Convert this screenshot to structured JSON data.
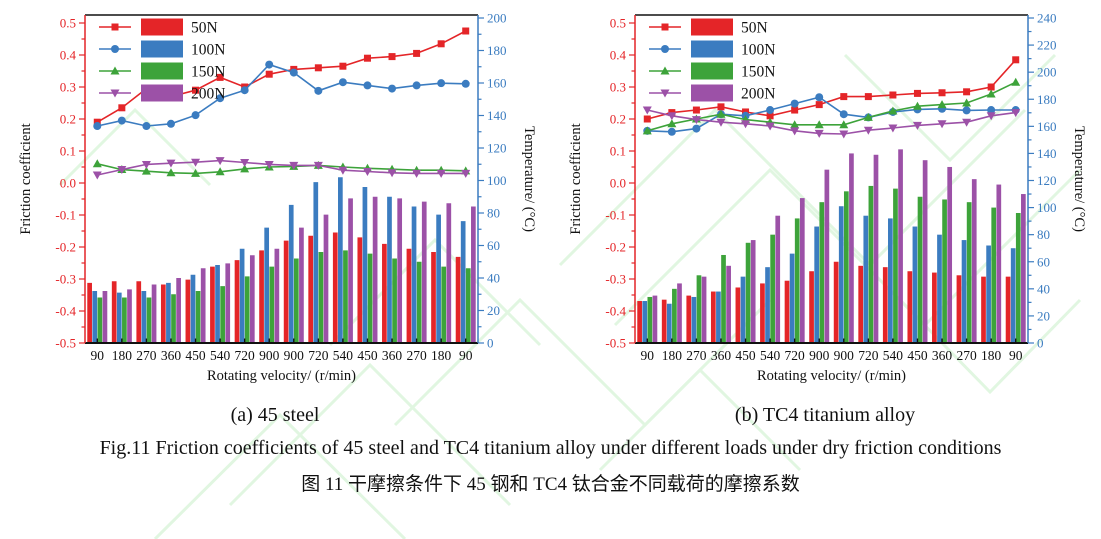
{
  "captions": {
    "a": "(a) 45 steel",
    "b": "(b) TC4 titanium alloy",
    "fig_en": "Fig.11 Friction coefficients of 45 steel and TC4 titanium alloy under different loads under dry friction conditions",
    "fig_zh": "图 11  干摩擦条件下 45 钢和 TC4 钛合金不同载荷的摩擦系数"
  },
  "colors": {
    "load50": "#e42528",
    "load100": "#3b7cc0",
    "load150": "#3da33a",
    "load200": "#9c51a7",
    "axis_left": "#e42528",
    "axis_right": "#3b7cc0",
    "axis_black": "#111111",
    "watermark": "#c9f0c9"
  },
  "chart_data": [
    {
      "type": "bar+line",
      "title": "(a) 45 steel",
      "xlabel": "Rotating velocity/ (r/min)",
      "ylabel_left": "Friction coefficient",
      "ylabel_right": "Temperature/ (°C)",
      "ylim_left": [
        -0.5,
        0.5
      ],
      "ytick_step_left": 0.1,
      "ylim_right": [
        0,
        200
      ],
      "ytick_step_right": 20,
      "grid": false,
      "legend_position": "top-left",
      "categories": [
        "90",
        "180",
        "270",
        "360",
        "450",
        "540",
        "720",
        "900",
        "900",
        "720",
        "540",
        "450",
        "360",
        "270",
        "180",
        "90"
      ],
      "legend": [
        "50N",
        "100N",
        "150N",
        "200N"
      ],
      "line_series": [
        {
          "name": "50N",
          "marker": "square",
          "color": "#e42528",
          "values": [
            0.19,
            0.235,
            0.295,
            0.27,
            0.29,
            0.33,
            0.3,
            0.34,
            0.355,
            0.36,
            0.365,
            0.39,
            0.395,
            0.405,
            0.435,
            0.475
          ]
        },
        {
          "name": "100N",
          "marker": "circle",
          "color": "#3b7cc0",
          "values": [
            0.178,
            0.195,
            0.178,
            0.185,
            0.212,
            0.265,
            0.29,
            0.37,
            0.345,
            0.288,
            0.315,
            0.305,
            0.295,
            0.305,
            0.312,
            0.31
          ]
        },
        {
          "name": "150N",
          "marker": "triangle-up",
          "color": "#3da33a",
          "values": [
            0.06,
            0.042,
            0.037,
            0.032,
            0.03,
            0.035,
            0.044,
            0.05,
            0.052,
            0.055,
            0.05,
            0.046,
            0.043,
            0.04,
            0.04,
            0.038
          ]
        },
        {
          "name": "200N",
          "marker": "triangle-down",
          "color": "#9c51a7",
          "values": [
            0.025,
            0.042,
            0.058,
            0.062,
            0.065,
            0.07,
            0.064,
            0.058,
            0.055,
            0.055,
            0.04,
            0.036,
            0.032,
            0.03,
            0.03,
            0.03
          ]
        }
      ],
      "bar_series": [
        {
          "name": "50N",
          "color": "#e42528",
          "values": [
            37,
            38,
            38,
            36,
            39,
            47,
            51,
            57,
            63,
            66,
            68,
            65,
            61,
            58,
            56,
            53
          ]
        },
        {
          "name": "100N",
          "color": "#3b7cc0",
          "values": [
            32,
            31,
            32,
            37,
            42,
            48,
            58,
            71,
            85,
            99,
            102,
            96,
            90,
            84,
            79,
            75
          ]
        },
        {
          "name": "150N",
          "color": "#3da33a",
          "values": [
            28,
            28,
            28,
            30,
            32,
            35,
            41,
            47,
            52,
            56,
            57,
            55,
            52,
            50,
            47,
            46
          ]
        },
        {
          "name": "200N",
          "color": "#9c51a7",
          "values": [
            32,
            33,
            36,
            40,
            46,
            49,
            54,
            58,
            71,
            79,
            89,
            90,
            89,
            87,
            86,
            84
          ]
        }
      ]
    },
    {
      "type": "bar+line",
      "title": "(b) TC4 titanium alloy",
      "xlabel": "Rotating velocity/ (r/min)",
      "ylabel_left": "Friction coefficient",
      "ylabel_right": "Temperature/ (°C)",
      "ylim_left": [
        -0.5,
        0.5
      ],
      "ytick_step_left": 0.1,
      "ylim_right": [
        0,
        240
      ],
      "ytick_step_right": 20,
      "grid": false,
      "legend_position": "top-left",
      "categories": [
        "90",
        "180",
        "270",
        "360",
        "450",
        "540",
        "720",
        "900",
        "900",
        "720",
        "540",
        "450",
        "360",
        "270",
        "180",
        "90"
      ],
      "legend": [
        "50N",
        "100N",
        "150N",
        "200N"
      ],
      "line_series": [
        {
          "name": "50N",
          "marker": "square",
          "color": "#e42528",
          "values": [
            0.2,
            0.22,
            0.228,
            0.238,
            0.222,
            0.21,
            0.228,
            0.245,
            0.27,
            0.27,
            0.275,
            0.28,
            0.282,
            0.285,
            0.3,
            0.385
          ]
        },
        {
          "name": "100N",
          "marker": "circle",
          "color": "#3b7cc0",
          "values": [
            0.163,
            0.16,
            0.17,
            0.215,
            0.21,
            0.228,
            0.248,
            0.268,
            0.215,
            0.205,
            0.222,
            0.23,
            0.232,
            0.227,
            0.228,
            0.228
          ]
        },
        {
          "name": "150N",
          "marker": "triangle-up",
          "color": "#3da33a",
          "values": [
            0.163,
            0.185,
            0.2,
            0.215,
            0.198,
            0.19,
            0.182,
            0.182,
            0.182,
            0.205,
            0.225,
            0.24,
            0.245,
            0.25,
            0.278,
            0.315
          ]
        },
        {
          "name": "200N",
          "marker": "triangle-down",
          "color": "#9c51a7",
          "values": [
            0.228,
            0.21,
            0.198,
            0.19,
            0.185,
            0.178,
            0.163,
            0.155,
            0.153,
            0.165,
            0.172,
            0.18,
            0.185,
            0.19,
            0.21,
            0.22
          ]
        }
      ],
      "bar_series": [
        {
          "name": "50N",
          "color": "#e42528",
          "values": [
            31,
            32,
            35,
            38,
            41,
            44,
            46,
            53,
            60,
            57,
            56,
            53,
            52,
            50,
            49,
            49
          ]
        },
        {
          "name": "100N",
          "color": "#3b7cc0",
          "values": [
            31,
            29,
            34,
            38,
            49,
            56,
            66,
            86,
            101,
            94,
            92,
            86,
            80,
            76,
            72,
            70
          ]
        },
        {
          "name": "150N",
          "color": "#3da33a",
          "values": [
            34,
            40,
            50,
            65,
            74,
            80,
            92,
            104,
            112,
            116,
            114,
            108,
            106,
            104,
            100,
            96
          ]
        },
        {
          "name": "200N",
          "color": "#9c51a7",
          "values": [
            35,
            44,
            49,
            57,
            76,
            94,
            107,
            128,
            140,
            139,
            143,
            135,
            130,
            121,
            117,
            110
          ]
        }
      ]
    }
  ]
}
